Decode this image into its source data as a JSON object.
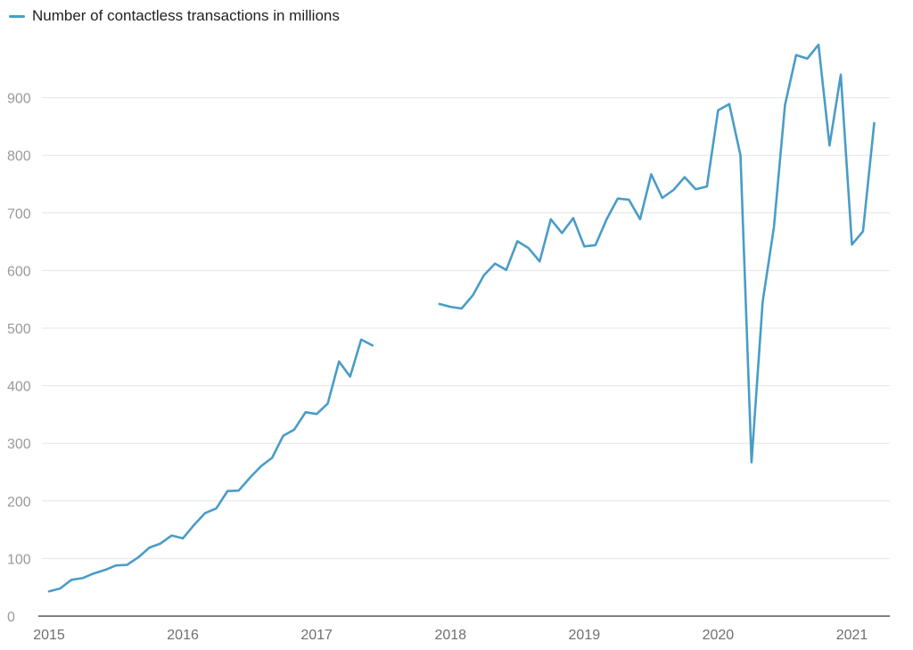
{
  "chart_data": {
    "type": "line",
    "legend": {
      "label": "Number of contactless transactions in millions",
      "position": "top-left"
    },
    "colors": {
      "series": "#4a9cc7",
      "grid": "#e4e4e4",
      "axis": "#333333"
    },
    "xlim": [
      2015,
      2021.2
    ],
    "ylim": [
      0,
      1000
    ],
    "y_ticks": [
      0,
      100,
      200,
      300,
      400,
      500,
      600,
      700,
      800,
      900
    ],
    "x_ticks": [
      2015,
      2016,
      2017,
      2018,
      2019,
      2020,
      2021
    ],
    "grid": true,
    "series": [
      {
        "name": "Number of contactless transactions in millions",
        "segments": [
          [
            [
              2015.0,
              43
            ],
            [
              2015.083,
              48
            ],
            [
              2015.167,
              63
            ],
            [
              2015.25,
              66
            ],
            [
              2015.333,
              74
            ],
            [
              2015.417,
              80
            ],
            [
              2015.5,
              88
            ],
            [
              2015.583,
              89
            ],
            [
              2015.667,
              102
            ],
            [
              2015.75,
              119
            ],
            [
              2015.833,
              126
            ],
            [
              2015.917,
              140
            ],
            [
              2016.0,
              135
            ],
            [
              2016.083,
              158
            ],
            [
              2016.167,
              179
            ],
            [
              2016.25,
              187
            ],
            [
              2016.333,
              217
            ],
            [
              2016.417,
              218
            ],
            [
              2016.5,
              240
            ],
            [
              2016.583,
              260
            ],
            [
              2016.667,
              275
            ],
            [
              2016.75,
              313
            ],
            [
              2016.833,
              324
            ],
            [
              2016.917,
              354
            ],
            [
              2017.0,
              351
            ],
            [
              2017.083,
              369
            ],
            [
              2017.167,
              442
            ],
            [
              2017.25,
              416
            ],
            [
              2017.333,
              480
            ],
            [
              2017.417,
              470
            ]
          ],
          [
            [
              2017.917,
              542
            ],
            [
              2018.0,
              537
            ],
            [
              2018.083,
              534
            ],
            [
              2018.167,
              557
            ],
            [
              2018.25,
              592
            ],
            [
              2018.333,
              612
            ],
            [
              2018.417,
              601
            ],
            [
              2018.5,
              651
            ],
            [
              2018.583,
              639
            ],
            [
              2018.667,
              616
            ],
            [
              2018.75,
              689
            ],
            [
              2018.833,
              665
            ],
            [
              2018.917,
              691
            ],
            [
              2019.0,
              642
            ],
            [
              2019.083,
              644
            ],
            [
              2019.167,
              689
            ],
            [
              2019.25,
              725
            ],
            [
              2019.333,
              723
            ],
            [
              2019.417,
              689
            ],
            [
              2019.5,
              767
            ],
            [
              2019.583,
              726
            ],
            [
              2019.667,
              740
            ],
            [
              2019.75,
              762
            ],
            [
              2019.833,
              741
            ],
            [
              2019.917,
              746
            ],
            [
              2020.0,
              878
            ],
            [
              2020.083,
              889
            ],
            [
              2020.167,
              800
            ],
            [
              2020.25,
              267
            ],
            [
              2020.333,
              546
            ],
            [
              2020.417,
              675
            ],
            [
              2020.5,
              887
            ],
            [
              2020.583,
              974
            ],
            [
              2020.667,
              968
            ],
            [
              2020.75,
              992
            ],
            [
              2020.833,
              817
            ],
            [
              2020.917,
              940
            ],
            [
              2021.0,
              645
            ],
            [
              2021.083,
              668
            ],
            [
              2021.167,
              856
            ]
          ]
        ]
      }
    ]
  }
}
